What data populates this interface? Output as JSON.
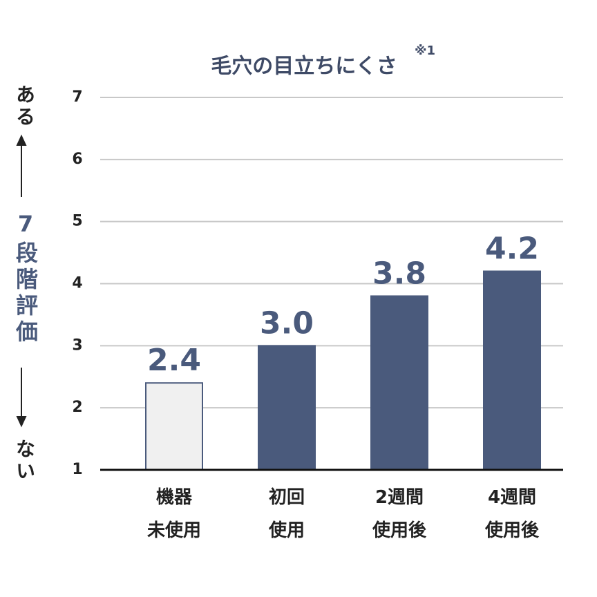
{
  "chart_data": {
    "type": "bar",
    "title": "毛穴の目立ちにくさ",
    "title_note": "※1",
    "y_axis_label": {
      "top": "ある",
      "main": "7段階評価",
      "bottom": "ない"
    },
    "categories": [
      "機器\n未使用",
      "初回\n使用",
      "2週間\n使用後",
      "4週間\n使用後"
    ],
    "values": [
      2.4,
      3.0,
      3.8,
      4.2
    ],
    "value_labels": [
      "2.4",
      "3.0",
      "3.8",
      "4.2"
    ],
    "colors": [
      "#f0f0f0",
      "#4a5a7c",
      "#4a5a7c",
      "#4a5a7c"
    ],
    "ylim": [
      1,
      7
    ],
    "yticks": [
      1,
      2,
      3,
      4,
      5,
      6,
      7
    ],
    "grid": true
  }
}
